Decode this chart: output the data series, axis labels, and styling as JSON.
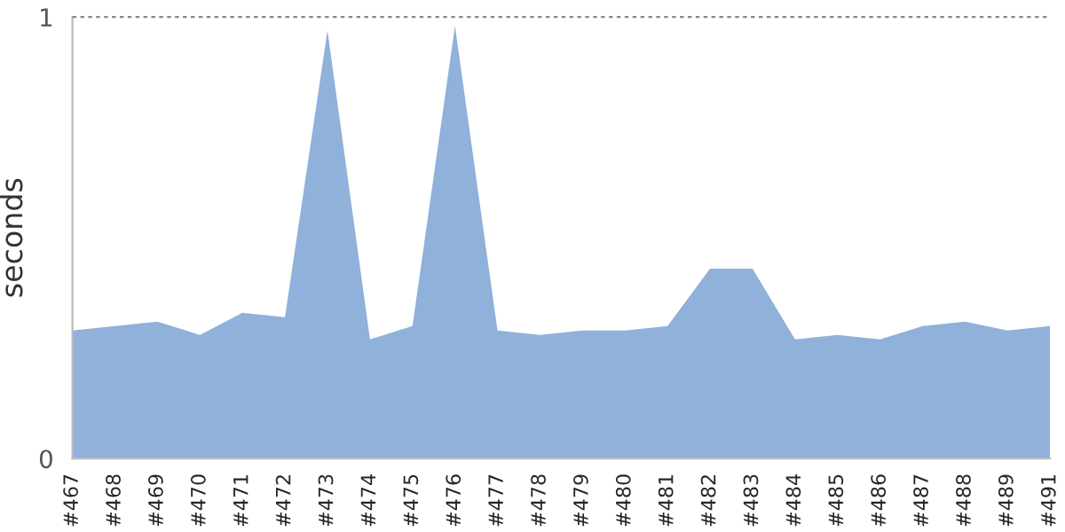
{
  "chart_data": {
    "type": "area",
    "ylabel": "seconds",
    "categories": [
      "#467",
      "#468",
      "#469",
      "#470",
      "#471",
      "#472",
      "#473",
      "#474",
      "#475",
      "#476",
      "#477",
      "#478",
      "#479",
      "#480",
      "#481",
      "#482",
      "#483",
      "#484",
      "#485",
      "#486",
      "#487",
      "#488",
      "#489",
      "#491"
    ],
    "series": [
      {
        "color": "#8fb1da",
        "values": [
          0.29,
          0.3,
          0.31,
          0.28,
          0.33,
          0.32,
          0.97,
          0.27,
          0.3,
          0.98,
          0.29,
          0.28,
          0.29,
          0.29,
          0.3,
          0.43,
          0.43,
          0.27,
          0.28,
          0.27,
          0.3,
          0.31,
          0.29,
          0.3
        ]
      }
    ],
    "ylim": [
      0,
      1
    ],
    "yticks": [
      0,
      1
    ],
    "ref_lines": [
      {
        "axis": "y",
        "value": 1,
        "color": "#888888",
        "line_style": "dashed"
      }
    ]
  }
}
